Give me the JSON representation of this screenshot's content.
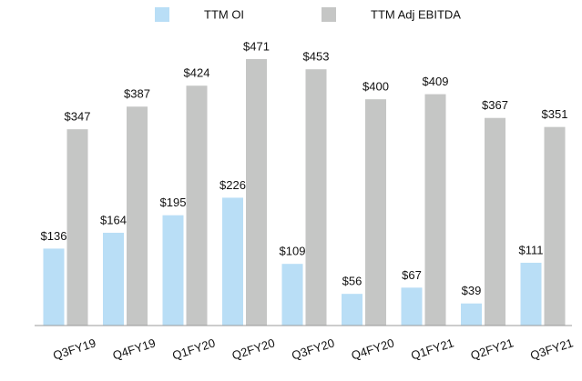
{
  "chart_data": {
    "type": "bar",
    "categories": [
      "Q3FY19",
      "Q4FY19",
      "Q1FY20",
      "Q2FY20",
      "Q3FY20",
      "Q4FY20",
      "Q1FY21",
      "Q2FY21",
      "Q3FY21"
    ],
    "series": [
      {
        "name": "TTM OI",
        "color": "#b9def6",
        "values": [
          136,
          164,
          195,
          226,
          109,
          56,
          67,
          39,
          111
        ],
        "value_labels": [
          "$136",
          "$164",
          "$195",
          "$226",
          "$109",
          "$56",
          "$67",
          "$39",
          "$111"
        ]
      },
      {
        "name": "TTM Adj EBITDA",
        "color": "#c5c6c5",
        "values": [
          347,
          387,
          424,
          471,
          453,
          400,
          409,
          367,
          351
        ],
        "value_labels": [
          "$347",
          "$387",
          "$424",
          "$471",
          "$453",
          "$400",
          "$409",
          "$367",
          "$351"
        ]
      }
    ],
    "legend": "top"
  }
}
